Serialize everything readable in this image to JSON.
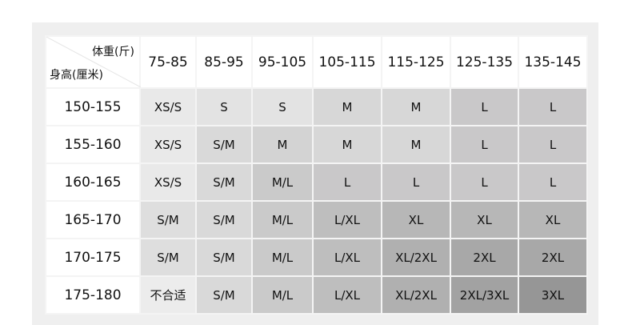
{
  "corner": {
    "weight_label": "体重(斤)",
    "height_label": "身高(厘米)"
  },
  "weights": [
    "75-85",
    "85-95",
    "95-105",
    "105-115",
    "115-125",
    "125-135",
    "135-145"
  ],
  "rows": [
    {
      "height": "150-155",
      "sizes": [
        "XS/S",
        "S",
        "S",
        "M",
        "M",
        "L",
        "L"
      ],
      "colors": [
        "#e9e9e9",
        "#e3e3e3",
        "#e3e3e3",
        "#d7d7d7",
        "#d7d7d7",
        "#c9c8c9",
        "#c9c8c9"
      ]
    },
    {
      "height": "155-160",
      "sizes": [
        "XS/S",
        "S/M",
        "M",
        "M",
        "M",
        "L",
        "L"
      ],
      "colors": [
        "#e9e9e9",
        "#d9d9d9",
        "#d3d3d3",
        "#d7d7d7",
        "#d7d7d7",
        "#c9c8c9",
        "#c9c8c9"
      ]
    },
    {
      "height": "160-165",
      "sizes": [
        "XS/S",
        "S/M",
        "M/L",
        "L",
        "L",
        "L",
        "L"
      ],
      "colors": [
        "#e9e9e9",
        "#d9d9d9",
        "#cacaca",
        "#c9c8c9",
        "#c9c8c9",
        "#c9c8c9",
        "#c9c8c9"
      ]
    },
    {
      "height": "165-170",
      "sizes": [
        "S/M",
        "S/M",
        "M/L",
        "L/XL",
        "XL",
        "XL",
        "XL"
      ],
      "colors": [
        "#dedede",
        "#d9d9d9",
        "#cacaca",
        "#bebebe",
        "#b7b7b7",
        "#b7b7b7",
        "#b7b7b7"
      ]
    },
    {
      "height": "170-175",
      "sizes": [
        "S/M",
        "S/M",
        "M/L",
        "L/XL",
        "XL/2XL",
        "2XL",
        "2XL"
      ],
      "colors": [
        "#dedede",
        "#d9d9d9",
        "#cacaca",
        "#bebebe",
        "#b0b0b0",
        "#a8a8a8",
        "#a8a8a8"
      ]
    },
    {
      "height": "175-180",
      "sizes": [
        "不合适",
        "S/M",
        "M/L",
        "L/XL",
        "XL/2XL",
        "2XL/3XL",
        "3XL"
      ],
      "colors": [
        "#ececec",
        "#d9d9d9",
        "#cacaca",
        "#bebebe",
        "#b0b0b0",
        "#a2a2a2",
        "#969696"
      ]
    }
  ]
}
